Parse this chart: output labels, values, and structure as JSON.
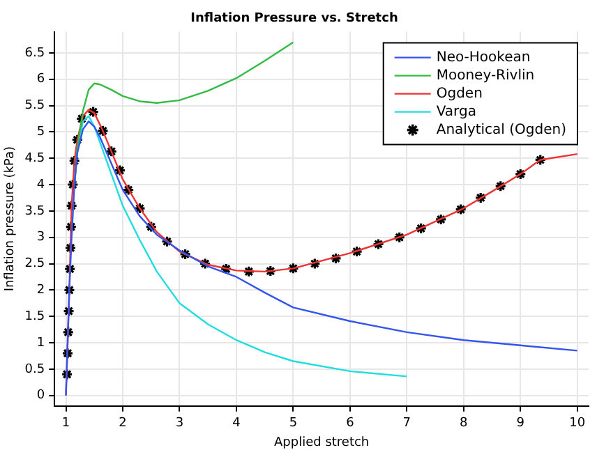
{
  "chart_data": {
    "type": "line",
    "title": "Inflation Pressure vs. Stretch",
    "xlabel": "Applied stretch",
    "ylabel": "Inflation pressure (kPa)",
    "xlim": [
      0.8,
      10.2
    ],
    "xticks": [
      1,
      2,
      3,
      4,
      5,
      6,
      7,
      8,
      9,
      10
    ],
    "ylim": [
      -0.2,
      6.9
    ],
    "yticks": [
      0,
      0.5,
      1,
      1.5,
      2,
      2.5,
      3,
      3.5,
      4,
      4.5,
      5,
      5.5,
      6,
      6.5
    ],
    "grid": true,
    "legend": "top right",
    "marker": "none",
    "series": [
      {
        "name": "Neo-Hookean",
        "color": "#3355ee",
        "x": [
          1,
          1.03,
          1.06,
          1.1,
          1.15,
          1.2,
          1.3,
          1.4,
          1.5,
          1.6,
          1.8,
          2,
          2.3,
          2.6,
          3,
          3.5,
          4,
          4.5,
          5,
          6,
          7,
          8,
          9,
          10
        ],
        "values": [
          0,
          1,
          2,
          3,
          4,
          4.6,
          5.05,
          5.2,
          5.1,
          4.9,
          4.4,
          3.9,
          3.4,
          3.05,
          2.75,
          2.45,
          2.25,
          1.95,
          1.67,
          1.41,
          1.2,
          1.05,
          0.95,
          0.85
        ]
      },
      {
        "name": "Mooney-Rivlin",
        "color": "#33bb44",
        "x": [
          1.15,
          1.2,
          1.3,
          1.4,
          1.5,
          1.6,
          1.8,
          2,
          2.3,
          2.6,
          3,
          3.5,
          4,
          4.5,
          5
        ],
        "values": [
          4,
          4.7,
          5.4,
          5.8,
          5.92,
          5.9,
          5.8,
          5.68,
          5.58,
          5.55,
          5.6,
          5.78,
          6.02,
          6.35,
          6.7
        ]
      },
      {
        "name": "Ogden",
        "color": "#ee3333",
        "x": [
          1,
          1.03,
          1.06,
          1.1,
          1.15,
          1.2,
          1.3,
          1.4,
          1.5,
          1.65,
          1.8,
          2,
          2.3,
          2.6,
          3,
          3.5,
          4,
          4.5,
          5,
          6,
          7,
          8,
          8.5,
          9,
          9.35,
          10
        ],
        "values": [
          0,
          1,
          2,
          3.6,
          4.45,
          4.85,
          5.3,
          5.42,
          5.36,
          5.02,
          4.63,
          4.1,
          3.55,
          3.1,
          2.73,
          2.48,
          2.37,
          2.35,
          2.41,
          2.7,
          3.05,
          3.55,
          3.87,
          4.2,
          4.47,
          4.58
        ]
      },
      {
        "name": "Varga",
        "color": "#22dddd",
        "x": [
          1.15,
          1.2,
          1.3,
          1.4,
          1.5,
          1.6,
          1.8,
          2,
          2.3,
          2.6,
          3,
          3.5,
          4,
          4.5,
          5,
          6,
          7
        ],
        "values": [
          4,
          4.65,
          5.2,
          5.3,
          5.1,
          4.8,
          4.2,
          3.6,
          2.95,
          2.35,
          1.75,
          1.35,
          1.05,
          0.82,
          0.65,
          0.46,
          0.36
        ]
      },
      {
        "name": "Analytical (Ogden)",
        "type": "scatter",
        "color": "#000000",
        "marker": "cross",
        "x": [
          1.02,
          1.03,
          1.04,
          1.05,
          1.06,
          1.07,
          1.08,
          1.09,
          1.1,
          1.12,
          1.15,
          1.2,
          1.28,
          1.48,
          1.65,
          1.8,
          1.95,
          2.1,
          2.3,
          2.5,
          2.78,
          3.1,
          3.45,
          3.82,
          4.22,
          4.6,
          5,
          5.38,
          5.75,
          6.12,
          6.5,
          6.87,
          7.25,
          7.6,
          7.95,
          8.3,
          8.65,
          9,
          9.35
        ],
        "values": [
          0.4,
          0.8,
          1.2,
          1.6,
          2,
          2.4,
          2.8,
          3.2,
          3.6,
          4,
          4.45,
          4.85,
          5.25,
          5.38,
          5.02,
          4.63,
          4.27,
          3.9,
          3.55,
          3.2,
          2.92,
          2.68,
          2.5,
          2.4,
          2.35,
          2.36,
          2.41,
          2.5,
          2.6,
          2.73,
          2.87,
          3,
          3.17,
          3.34,
          3.53,
          3.75,
          3.97,
          4.2,
          4.47
        ]
      }
    ]
  }
}
